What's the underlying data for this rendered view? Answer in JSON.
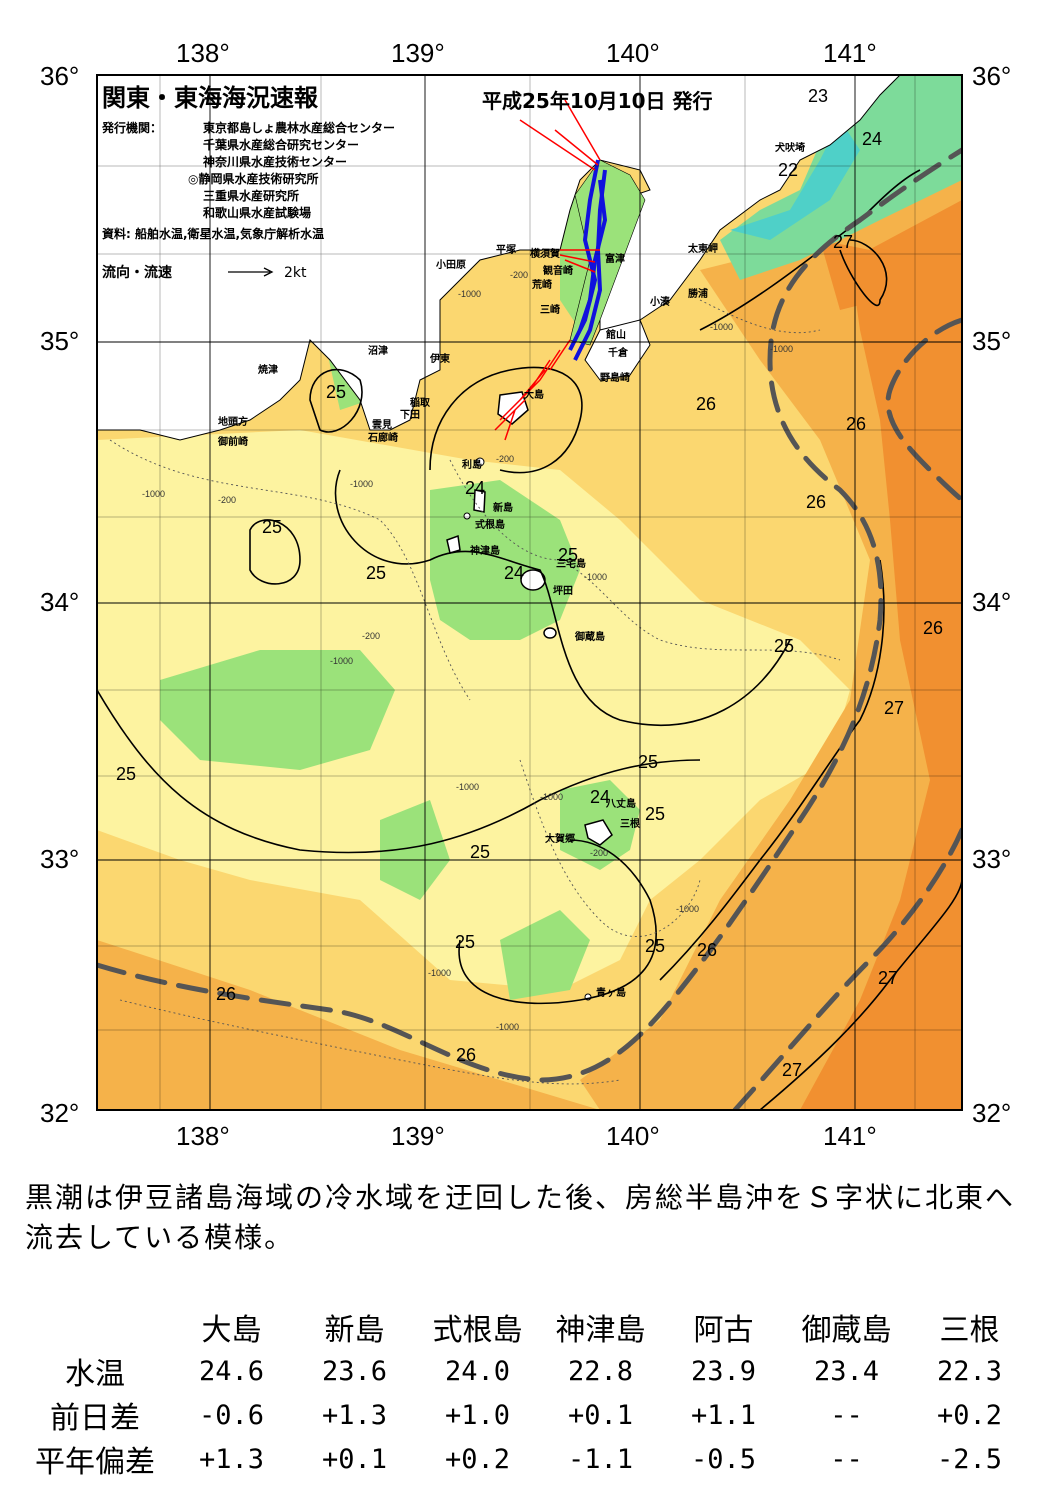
{
  "title": "関東・東海海況速報",
  "issue_date": "平成25年10月10日 発行",
  "agencies_label": "発行機関：",
  "agencies": [
    "東京都島しょ農林水産総合センター",
    "千葉県水産総合研究センター",
    "神奈川県水産技術センター",
    "◎静岡県水産技術研究所",
    "三重県水産研究所",
    "和歌山県水産試験場"
  ],
  "sources": "資料: 船舶水温,衛星水温,気象庁解析水温",
  "current_legend_label": "流向・流速",
  "current_legend_scale": "2kt",
  "lon_labels": [
    "138°",
    "139°",
    "140°",
    "141°"
  ],
  "lat_labels": [
    "36°",
    "35°",
    "34°",
    "33°",
    "32°"
  ],
  "place_names": [
    "犬吠埼",
    "太東岬",
    "勝浦",
    "小湊",
    "富津",
    "館山",
    "千倉",
    "野島崎",
    "横須賀",
    "観音崎",
    "荒崎",
    "三崎",
    "平塚",
    "小田原",
    "沼津",
    "伊東",
    "稲取",
    "下田",
    "雲見",
    "石廊崎",
    "焼津",
    "地頭方",
    "御前崎",
    "大島",
    "利島",
    "新島",
    "式根島",
    "神津島",
    "三宅島",
    "坪田",
    "御蔵島",
    "八丈島",
    "三根",
    "大賀郷",
    "青ヶ島"
  ],
  "isotherm_labels": [
    "23",
    "24",
    "22",
    "27",
    "26",
    "25"
  ],
  "depth_labels": [
    "-200",
    "-1000"
  ],
  "colors": {
    "land": "#ffffff",
    "t22": "#4fd0c8",
    "t23": "#7ddb9a",
    "t24": "#9be27a",
    "t25": "#fdf3a0",
    "t25b": "#fbd770",
    "t26": "#f5b24a",
    "t27": "#f19030",
    "kuroshio_axis": "#555555",
    "ship_track": "#1111dd",
    "current_vector": "#ff0000"
  },
  "summary": "黒潮は伊豆諸島海域の冷水域を迂回した後、房総半島沖をＳ字状に北東へ流去している模様。",
  "stats": {
    "stations": [
      "大島",
      "新島",
      "式根島",
      "神津島",
      "阿古",
      "御蔵島",
      "三根"
    ],
    "rows": [
      {
        "label": "水温",
        "values": [
          "24.6",
          "23.6",
          "24.0",
          "22.8",
          "23.9",
          "23.4",
          "22.3"
        ]
      },
      {
        "label": "前日差",
        "values": [
          "-0.6",
          "+1.3",
          "+1.0",
          "+0.1",
          "+1.1",
          "--",
          "+0.2"
        ]
      },
      {
        "label": "平年偏差",
        "values": [
          "+1.3",
          "+0.1",
          "+0.2",
          "-1.1",
          "-0.5",
          "--",
          "-2.5"
        ]
      }
    ]
  }
}
